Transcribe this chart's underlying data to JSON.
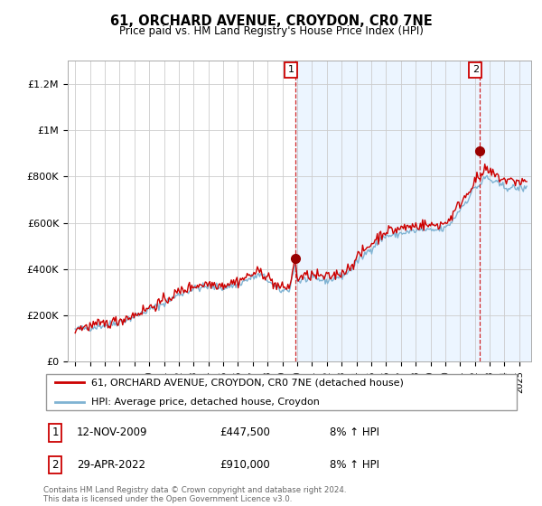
{
  "title": "61, ORCHARD AVENUE, CROYDON, CR0 7NE",
  "subtitle": "Price paid vs. HM Land Registry's House Price Index (HPI)",
  "footer": "Contains HM Land Registry data © Crown copyright and database right 2024.\nThis data is licensed under the Open Government Licence v3.0.",
  "legend_line1": "61, ORCHARD AVENUE, CROYDON, CR0 7NE (detached house)",
  "legend_line2": "HPI: Average price, detached house, Croydon",
  "annotation1_label": "1",
  "annotation1_date": "12-NOV-2009",
  "annotation1_price": "£447,500",
  "annotation1_note": "8% ↑ HPI",
  "annotation2_label": "2",
  "annotation2_date": "29-APR-2022",
  "annotation2_price": "£910,000",
  "annotation2_note": "8% ↑ HPI",
  "ylim": [
    0,
    1300000
  ],
  "yticks": [
    0,
    200000,
    400000,
    600000,
    800000,
    1000000,
    1200000
  ],
  "ytick_labels": [
    "£0",
    "£200K",
    "£400K",
    "£600K",
    "£800K",
    "£1M",
    "£1.2M"
  ],
  "plot_bg_left": "#ffffff",
  "plot_bg_right": "#ddeeff",
  "line_color_red": "#cc0000",
  "line_color_blue": "#7fb3d3",
  "marker1_x": 2009.87,
  "marker1_y": 447500,
  "marker2_x": 2022.33,
  "marker2_y": 910000,
  "vline1_x": 2009.87,
  "vline2_x": 2022.33,
  "xlim_left": 1994.5,
  "xlim_right": 2025.8
}
